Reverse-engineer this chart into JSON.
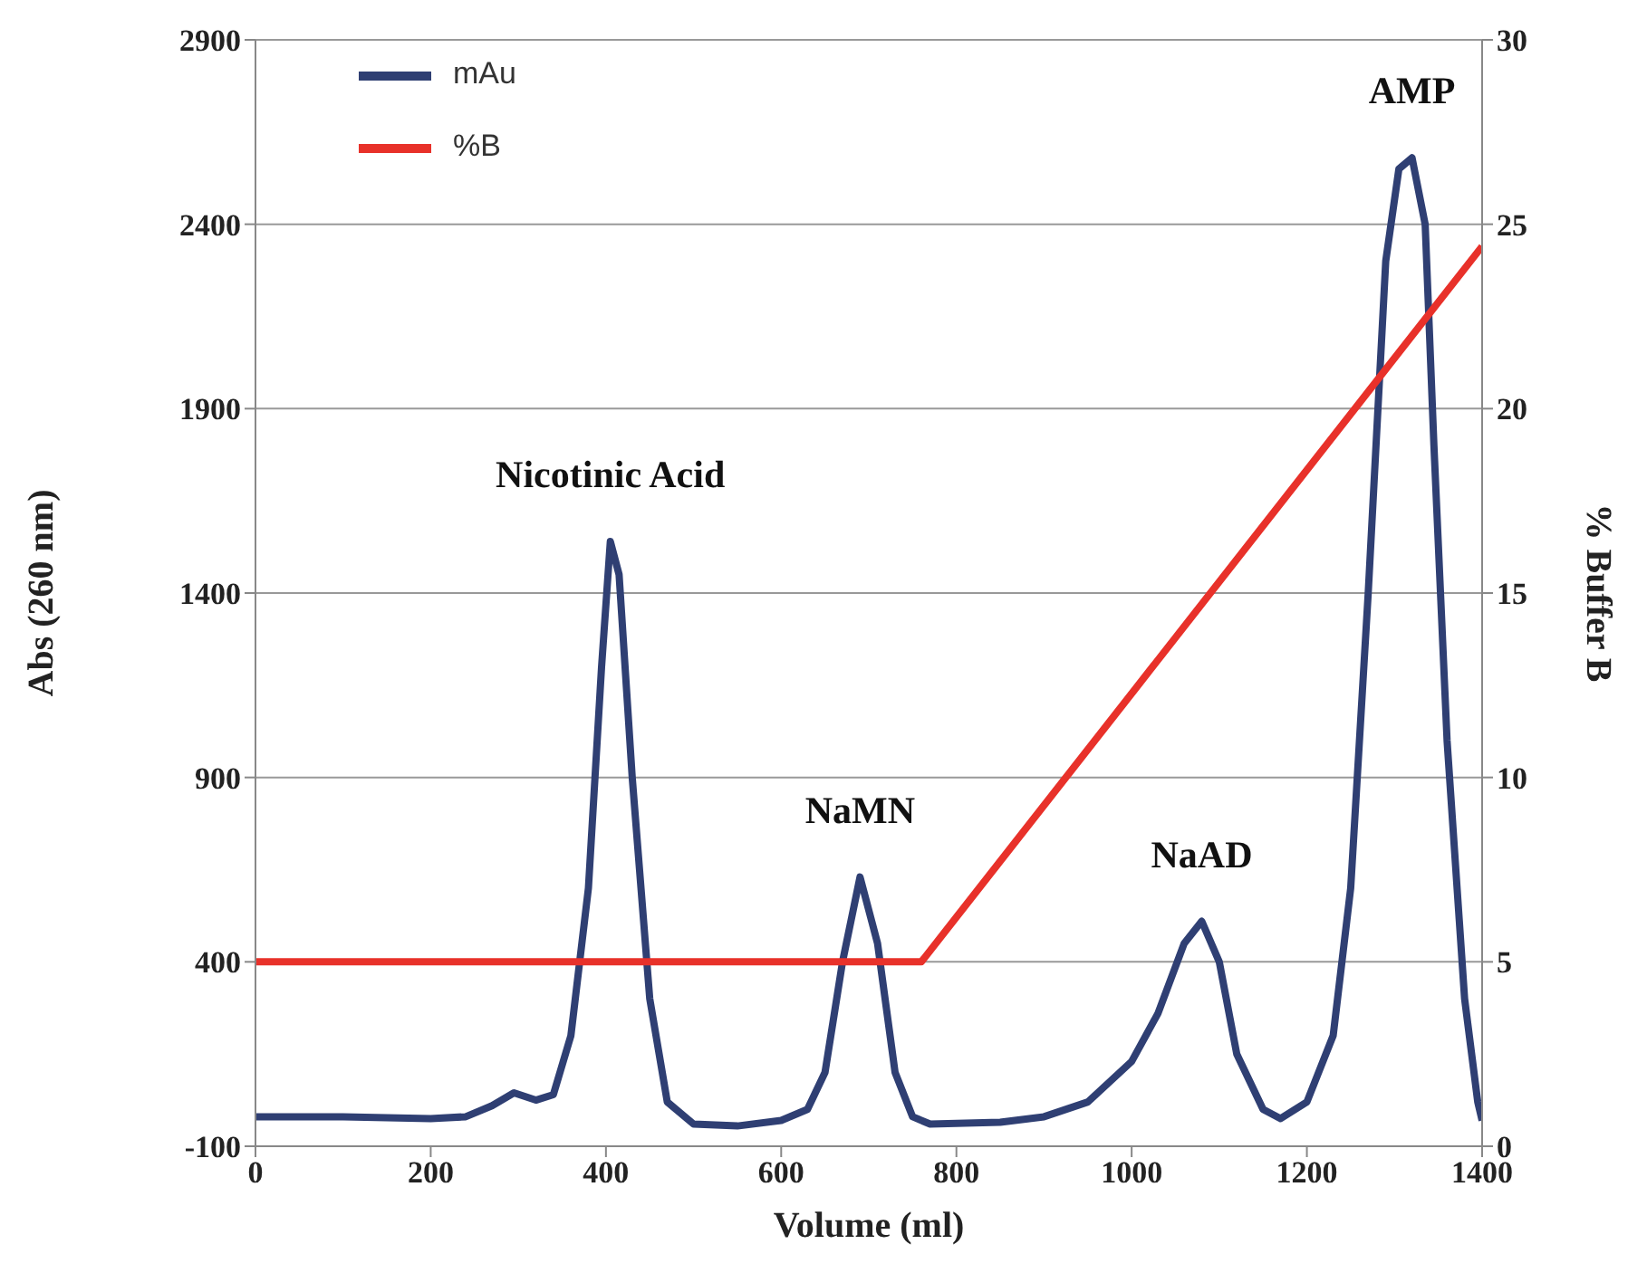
{
  "chart_data": {
    "type": "line",
    "xlabel": "Volume (ml)",
    "ylabel": "Abs (260 nm)",
    "y2label": "% Buffer B",
    "xlim": [
      0,
      1400
    ],
    "xticks": [
      0,
      200,
      400,
      600,
      800,
      1000,
      1200,
      1400
    ],
    "ylim": [
      -100,
      2900
    ],
    "yticks": [
      -100,
      400,
      900,
      1400,
      1900,
      2400,
      2900
    ],
    "y2lim": [
      0,
      30
    ],
    "y2ticks": [
      0,
      5,
      10,
      15,
      20,
      25,
      30
    ],
    "grid": "y",
    "legend": "top left",
    "marker": "none",
    "line_style": "solid",
    "series": [
      {
        "name": "mAu",
        "color": "#2f3f73",
        "x": [
          0,
          100,
          200,
          240,
          270,
          295,
          320,
          340,
          360,
          380,
          395,
          405,
          415,
          430,
          450,
          470,
          500,
          550,
          600,
          630,
          650,
          670,
          690,
          710,
          730,
          750,
          770,
          850,
          900,
          950,
          1000,
          1030,
          1060,
          1080,
          1100,
          1120,
          1150,
          1170,
          1200,
          1230,
          1250,
          1270,
          1290,
          1305,
          1320,
          1335,
          1345,
          1360,
          1380,
          1395,
          1400
        ],
        "values": [
          -20,
          -20,
          -25,
          -20,
          10,
          45,
          25,
          40,
          200,
          600,
          1200,
          1540,
          1450,
          900,
          300,
          20,
          -40,
          -45,
          -30,
          0,
          100,
          400,
          630,
          450,
          100,
          -20,
          -40,
          -35,
          -20,
          20,
          130,
          260,
          450,
          510,
          400,
          150,
          0,
          -25,
          20,
          200,
          600,
          1400,
          2300,
          2550,
          2580,
          2400,
          1800,
          1000,
          300,
          20,
          -30
        ]
      },
      {
        "name": "%B",
        "color": "#e8312a",
        "axis": "y2",
        "x": [
          0,
          760,
          1400
        ],
        "values": [
          5,
          5,
          24.4
        ]
      }
    ],
    "annotations": [
      {
        "text": "Nicotinic Acid",
        "x": 405,
        "y": 1540
      },
      {
        "text": "NaMN",
        "x": 690,
        "y": 630
      },
      {
        "text": "NaAD",
        "x": 1080,
        "y": 510
      },
      {
        "text": "AMP",
        "x": 1320,
        "y": 2580
      }
    ]
  }
}
